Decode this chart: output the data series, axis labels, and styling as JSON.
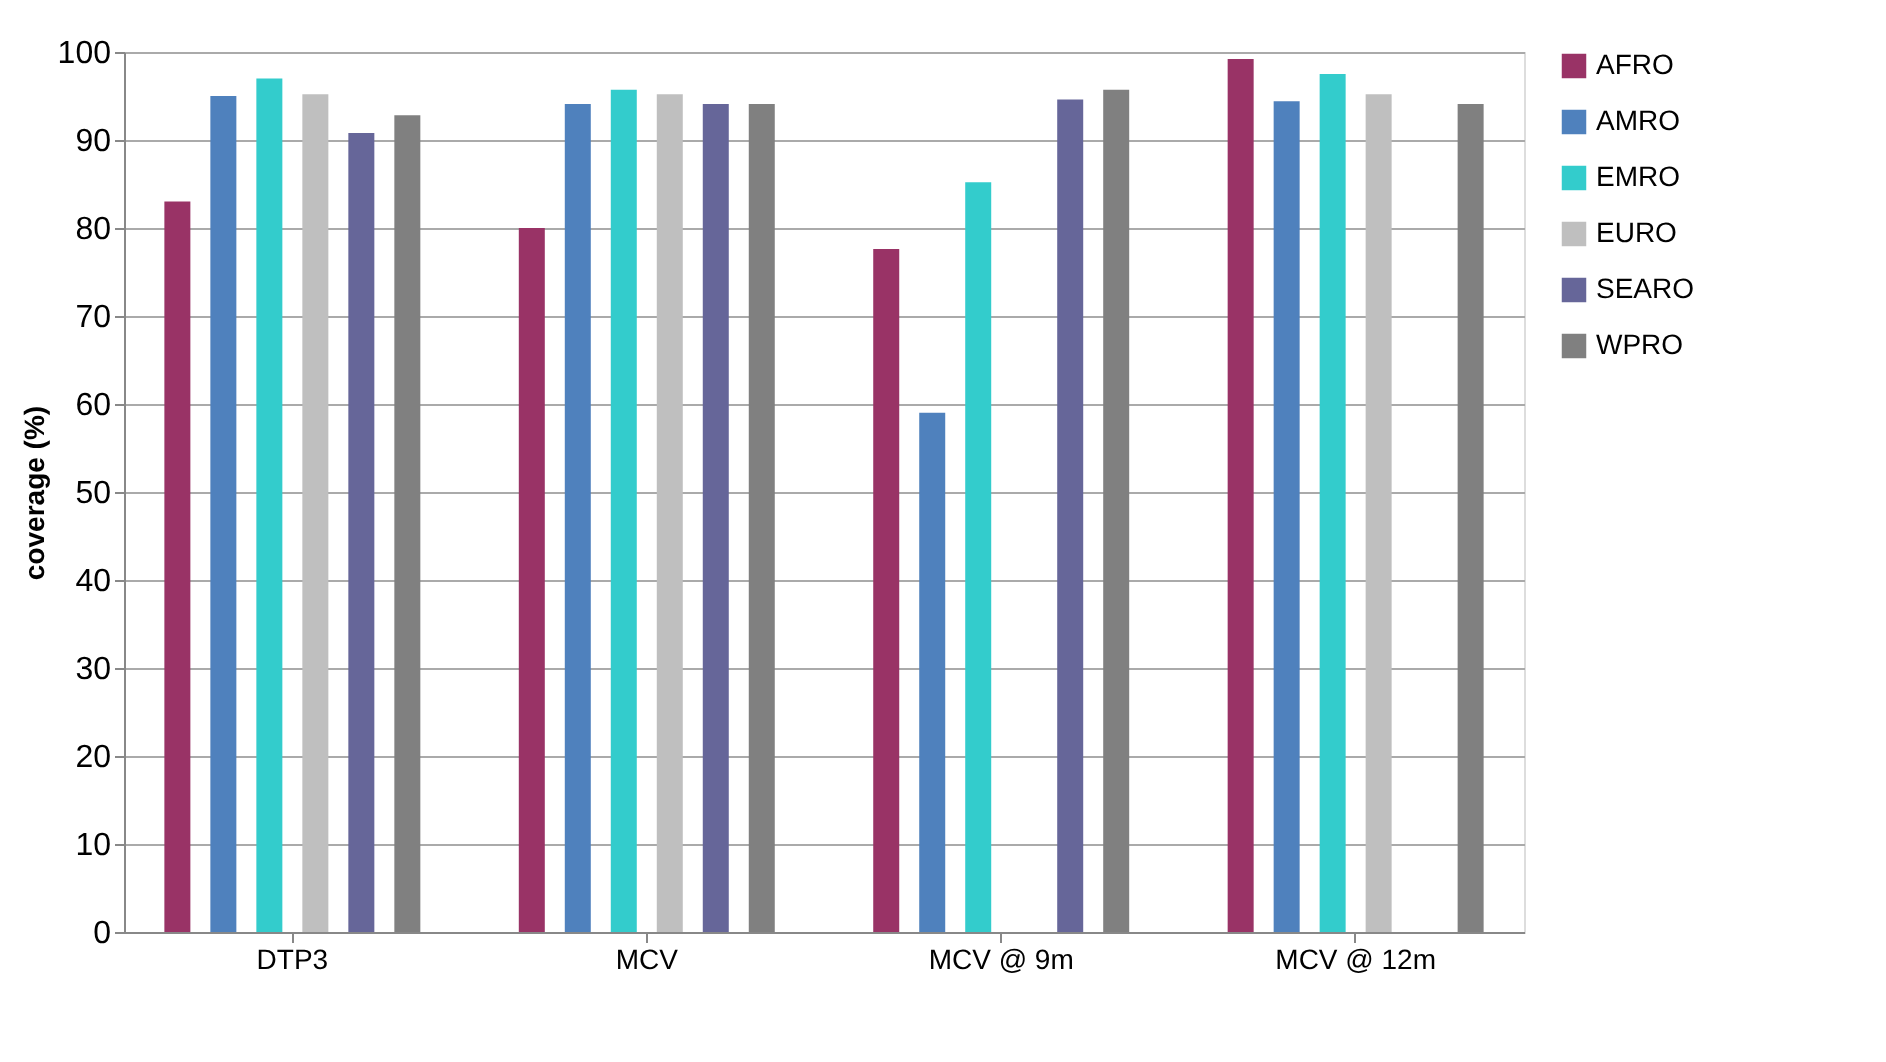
{
  "chart_data": {
    "type": "bar",
    "ylabel": "coverage (%)",
    "categories": [
      "DTP3",
      "MCV",
      "MCV @ 9m",
      "MCV @ 12m"
    ],
    "series": [
      {
        "name": "AFRO",
        "color": "#993366",
        "values": [
          83,
          80,
          77.6,
          99.2
        ]
      },
      {
        "name": "AMRO",
        "color": "#4f81bd",
        "values": [
          95,
          94.1,
          59,
          94.4
        ]
      },
      {
        "name": "EMRO",
        "color": "#33cccc",
        "values": [
          97,
          95.7,
          85.2,
          97.5
        ]
      },
      {
        "name": "EURO",
        "color": "#bfbfbf",
        "values": [
          95.2,
          95.2,
          null,
          95.2
        ]
      },
      {
        "name": "SEARO",
        "color": "#666699",
        "values": [
          90.8,
          94.1,
          94.6,
          null
        ]
      },
      {
        "name": "WPRO",
        "color": "#808080",
        "values": [
          92.8,
          94.1,
          95.7,
          94.1
        ]
      }
    ],
    "ylim": [
      0,
      100
    ],
    "yticks": [
      0,
      10,
      20,
      30,
      40,
      50,
      60,
      70,
      80,
      90,
      100
    ],
    "grid": "y",
    "legend": "right"
  }
}
